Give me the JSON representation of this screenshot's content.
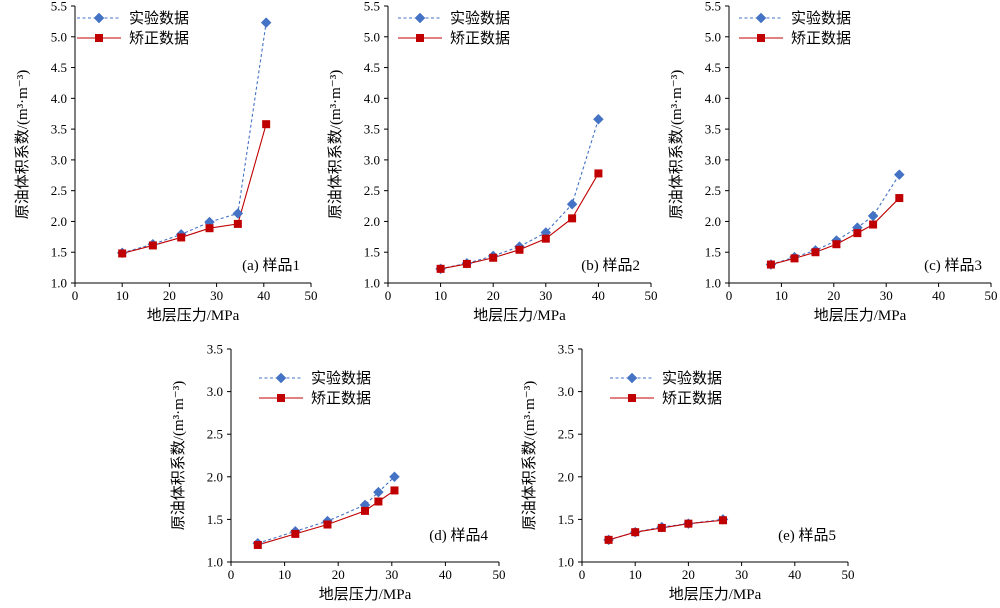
{
  "colors": {
    "experimental": "#4472c4",
    "corrected": "#c00000"
  },
  "chart_data": [
    {
      "id": "a",
      "type": "line",
      "panel_label": "(a) 样品1",
      "xlabel": "地层压力/MPa",
      "ylabel": "原油体积系数/(m³·m⁻³)",
      "xlim": [
        0,
        50
      ],
      "ylim": [
        1.0,
        5.5
      ],
      "xticks": [
        "0",
        "10",
        "20",
        "30",
        "40",
        "50"
      ],
      "yticks": [
        "1.0",
        "1.5",
        "2.0",
        "2.5",
        "3.0",
        "3.5",
        "4.0",
        "4.5",
        "5.0",
        "5.5"
      ],
      "legend_position": "top-left",
      "series": [
        {
          "name": "实验数据",
          "style": "dashed-diamond",
          "x": [
            10,
            16.5,
            22.5,
            28.5,
            34.5,
            40.5
          ],
          "y": [
            1.49,
            1.63,
            1.79,
            1.99,
            2.13,
            5.23
          ]
        },
        {
          "name": "矫正数据",
          "style": "solid-square",
          "x": [
            10,
            16.5,
            22.5,
            28.5,
            34.5,
            40.5
          ],
          "y": [
            1.48,
            1.61,
            1.74,
            1.89,
            1.96,
            3.58
          ]
        }
      ]
    },
    {
      "id": "b",
      "type": "line",
      "panel_label": "(b) 样品2",
      "xlabel": "地层压力/MPa",
      "ylabel": "原油体积系数/(m³·m⁻³)",
      "xlim": [
        0,
        50
      ],
      "ylim": [
        1.0,
        5.5
      ],
      "xticks": [
        "0",
        "10",
        "20",
        "30",
        "40",
        "50"
      ],
      "yticks": [
        "1.0",
        "1.5",
        "2.0",
        "2.5",
        "3.0",
        "3.5",
        "4.0",
        "4.5",
        "5.0",
        "5.5"
      ],
      "legend_position": "top-left",
      "series": [
        {
          "name": "实验数据",
          "style": "dashed-diamond",
          "x": [
            10,
            15,
            20,
            25,
            30,
            35,
            40
          ],
          "y": [
            1.23,
            1.32,
            1.44,
            1.59,
            1.82,
            2.28,
            3.66
          ]
        },
        {
          "name": "矫正数据",
          "style": "solid-square",
          "x": [
            10,
            15,
            20,
            25,
            30,
            35,
            40
          ],
          "y": [
            1.23,
            1.31,
            1.41,
            1.54,
            1.72,
            2.05,
            2.78
          ]
        }
      ]
    },
    {
      "id": "c",
      "type": "line",
      "panel_label": "(c) 样品3",
      "xlabel": "地层压力/MPa",
      "ylabel": "原油体积系数/(m³·m⁻³)",
      "xlim": [
        0,
        50
      ],
      "ylim": [
        1.0,
        5.5
      ],
      "xticks": [
        "0",
        "10",
        "20",
        "30",
        "40",
        "50"
      ],
      "yticks": [
        "1.0",
        "1.5",
        "2.0",
        "2.5",
        "3.0",
        "3.5",
        "4.0",
        "4.5",
        "5.0",
        "5.5"
      ],
      "legend_position": "top-left",
      "series": [
        {
          "name": "实验数据",
          "style": "dashed-diamond",
          "x": [
            8,
            12.5,
            16.5,
            20.5,
            24.5,
            27.5,
            32.5
          ],
          "y": [
            1.3,
            1.42,
            1.53,
            1.69,
            1.9,
            2.09,
            2.76
          ]
        },
        {
          "name": "矫正数据",
          "style": "solid-square",
          "x": [
            8,
            12.5,
            16.5,
            20.5,
            24.5,
            27.5,
            32.5
          ],
          "y": [
            1.3,
            1.4,
            1.5,
            1.63,
            1.81,
            1.95,
            2.38
          ]
        }
      ]
    },
    {
      "id": "d",
      "type": "line",
      "panel_label": "(d) 样品4",
      "xlabel": "地层压力/MPa",
      "ylabel": "原油体积系数/(m³·m⁻³)",
      "xlim": [
        0,
        50
      ],
      "ylim": [
        1.0,
        3.5
      ],
      "xticks": [
        "0",
        "10",
        "20",
        "30",
        "40",
        "50"
      ],
      "yticks": [
        "1.0",
        "1.5",
        "2.0",
        "2.5",
        "3.0",
        "3.5"
      ],
      "legend_position": "top-left",
      "series": [
        {
          "name": "实验数据",
          "style": "dashed-diamond",
          "x": [
            5,
            12,
            18,
            25,
            27.5,
            30.5
          ],
          "y": [
            1.22,
            1.36,
            1.48,
            1.67,
            1.82,
            2.0
          ]
        },
        {
          "name": "矫正数据",
          "style": "solid-square",
          "x": [
            5,
            12,
            18,
            25,
            27.5,
            30.5
          ],
          "y": [
            1.2,
            1.33,
            1.44,
            1.6,
            1.71,
            1.84
          ]
        }
      ]
    },
    {
      "id": "e",
      "type": "line",
      "panel_label": "(e) 样品5",
      "xlabel": "地层压力/MPa",
      "ylabel": "原油体积系数/(m³·m⁻³)",
      "xlim": [
        0,
        50
      ],
      "ylim": [
        1.0,
        3.5
      ],
      "xticks": [
        "0",
        "10",
        "20",
        "30",
        "40",
        "50"
      ],
      "yticks": [
        "1.0",
        "1.5",
        "2.0",
        "2.5",
        "3.0",
        "3.5"
      ],
      "legend_position": "top-left",
      "series": [
        {
          "name": "实验数据",
          "style": "dashed-diamond",
          "x": [
            5,
            10,
            15,
            20,
            26.5
          ],
          "y": [
            1.26,
            1.35,
            1.41,
            1.45,
            1.5
          ]
        },
        {
          "name": "矫正数据",
          "style": "solid-square",
          "x": [
            5,
            10,
            15,
            20,
            26.5
          ],
          "y": [
            1.26,
            1.35,
            1.4,
            1.45,
            1.49
          ]
        }
      ]
    }
  ]
}
